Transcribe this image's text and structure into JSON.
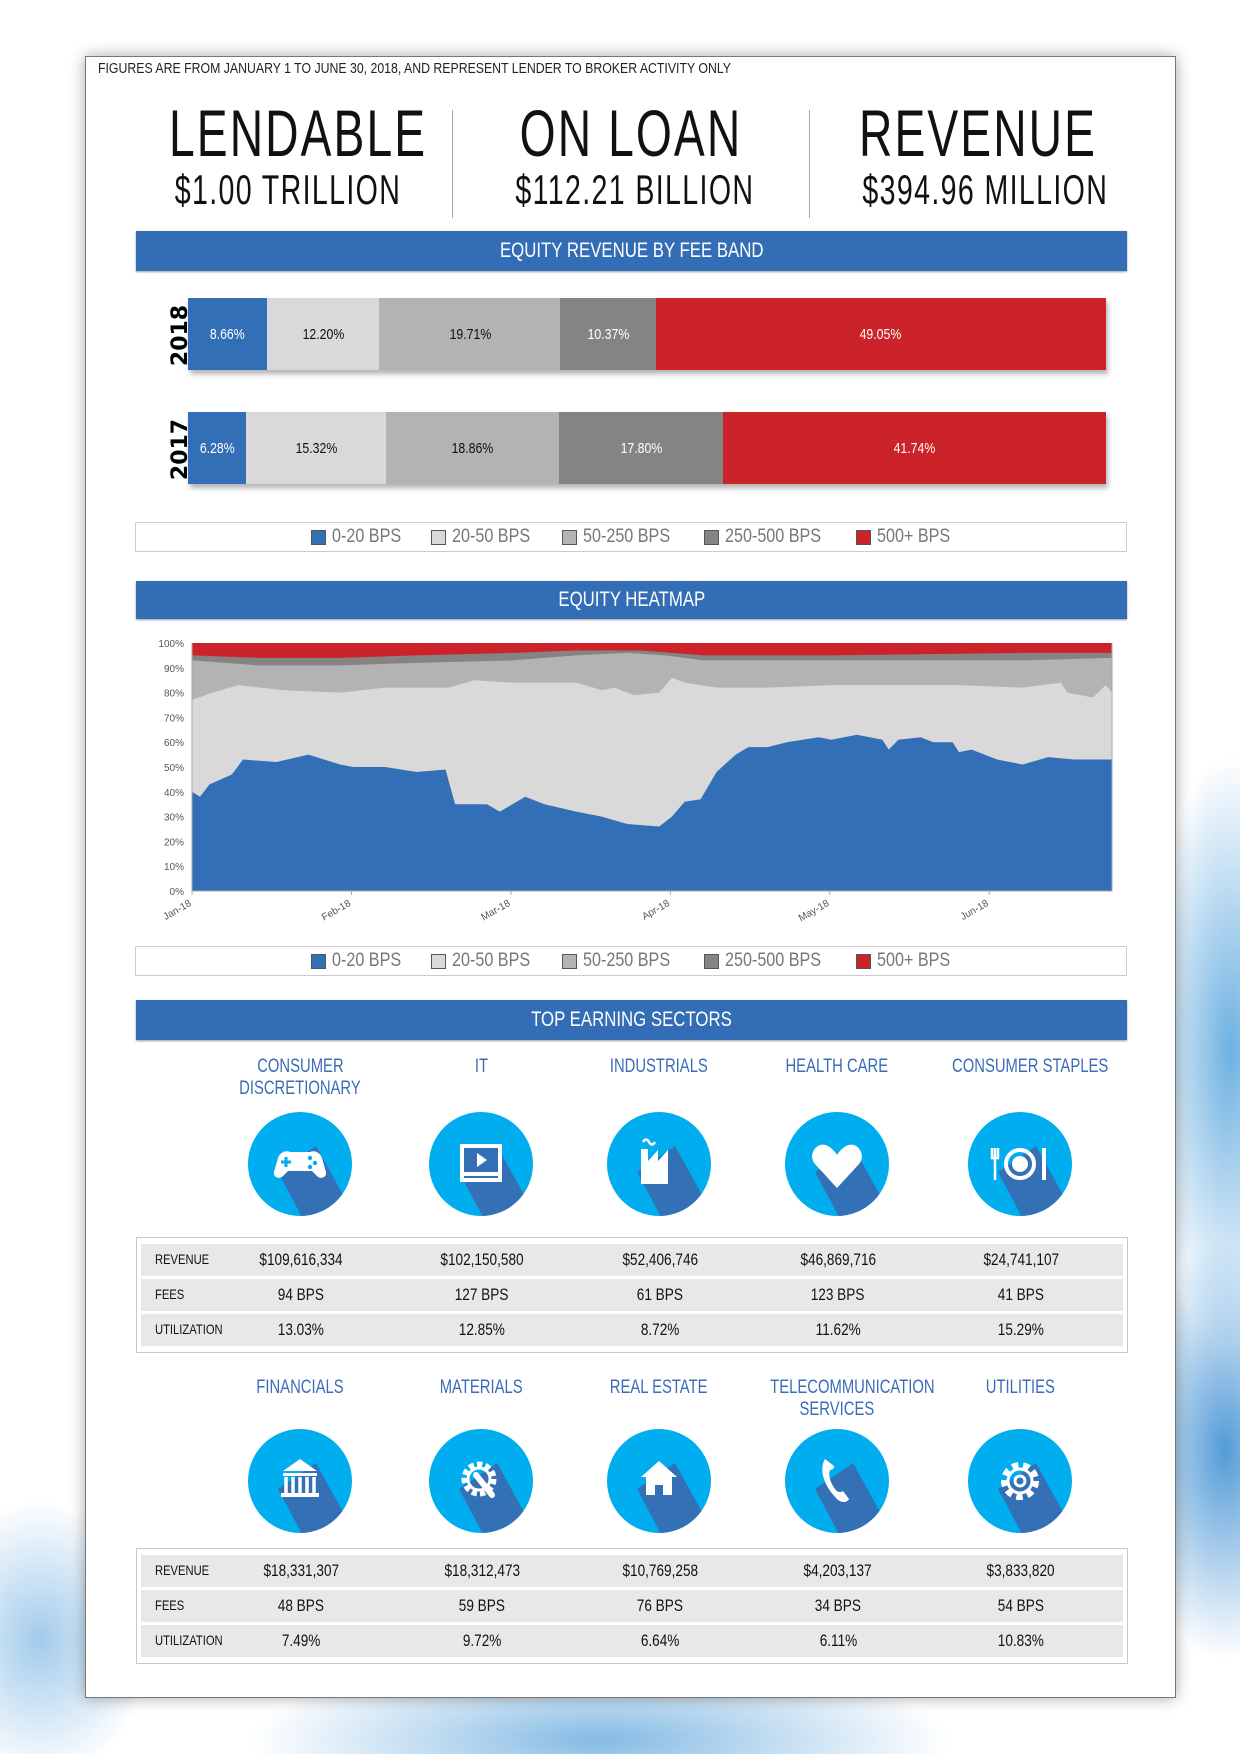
{
  "note": "FIGURES ARE FROM JANUARY 1 TO JUNE 30, 2018, AND REPRESENT LENDER TO BROKER ACTIVITY ONLY",
  "stats": [
    {
      "title": "LENDABLE",
      "value": "$1.00 TRILLION"
    },
    {
      "title": "ON LOAN",
      "value": "$112.21 BILLION"
    },
    {
      "title": "REVENUE",
      "value": "$394.96 MILLION"
    }
  ],
  "legend": [
    {
      "label": "0-20 BPS",
      "color": "#336fb7"
    },
    {
      "label": "20-50 BPS",
      "color": "#d9d9d9"
    },
    {
      "label": "50-250 BPS",
      "color": "#b4b3b3"
    },
    {
      "label": "250-500 BPS",
      "color": "#858483"
    },
    {
      "label": "500+ BPS",
      "color": "#cc232a"
    }
  ],
  "chart_data": [
    {
      "type": "bar",
      "title": "EQUITY REVENUE BY FEE BAND",
      "stacked": true,
      "orientation": "horizontal",
      "categories": [
        "2018",
        "2017"
      ],
      "series": [
        {
          "name": "0-20 BPS",
          "values": [
            8.66,
            6.28
          ],
          "labels": [
            "8.66%",
            "6.28%"
          ]
        },
        {
          "name": "20-50 BPS",
          "values": [
            12.2,
            15.32
          ],
          "labels": [
            "12.20%",
            "15.32%"
          ]
        },
        {
          "name": "50-250 BPS",
          "values": [
            19.71,
            18.86
          ],
          "labels": [
            "19.71%",
            "18.86%"
          ]
        },
        {
          "name": "250-500 BPS",
          "values": [
            10.37,
            17.8
          ],
          "labels": [
            "10.37%",
            "17.80%"
          ]
        },
        {
          "name": "500+ BPS",
          "values": [
            49.05,
            41.74
          ],
          "labels": [
            "49.05%",
            "41.74%"
          ]
        }
      ],
      "legend_position": "bottom"
    },
    {
      "type": "area",
      "title": "EQUITY HEATMAP",
      "stacked": true,
      "x_unit": "months since Jan-18",
      "xticks": [
        "Jan-18",
        "Feb-18",
        "Mar-18",
        "Apr-18",
        "May-18",
        "Jun-18"
      ],
      "yticks": [
        "0%",
        "10%",
        "20%",
        "30%",
        "40%",
        "50%",
        "60%",
        "70%",
        "80%",
        "90%",
        "100%"
      ],
      "ylim": [
        0,
        100
      ],
      "xlim": [
        0,
        5.77
      ],
      "legend_position": "bottom",
      "series": [
        {
          "name": "500+ BPS",
          "cumulative_upper": [
            [
              0,
              100
            ],
            [
              5.77,
              100
            ]
          ]
        },
        {
          "name": "250-500 BPS",
          "cumulative_upper": [
            [
              0,
              95
            ],
            [
              0.41,
              94
            ],
            [
              0.93,
              94
            ],
            [
              1.41,
              95
            ],
            [
              2.01,
              96
            ],
            [
              2.41,
              97
            ],
            [
              2.81,
              97
            ],
            [
              3.01,
              96
            ],
            [
              3.21,
              95
            ],
            [
              3.45,
              95
            ],
            [
              4.01,
              95
            ],
            [
              5.21,
              96
            ],
            [
              5.77,
              96
            ]
          ]
        },
        {
          "name": "50-250 BPS",
          "cumulative_upper": [
            [
              0,
              93
            ],
            [
              0.41,
              91
            ],
            [
              0.93,
              91
            ],
            [
              1.41,
              92
            ],
            [
              2.01,
              93
            ],
            [
              2.41,
              95
            ],
            [
              2.73,
              96
            ],
            [
              2.97,
              95
            ],
            [
              3.21,
              93
            ],
            [
              3.61,
              93
            ],
            [
              4.41,
              93
            ],
            [
              5.21,
              93
            ],
            [
              5.77,
              94
            ]
          ]
        },
        {
          "name": "20-50 BPS",
          "cumulative_upper": [
            [
              0,
              77
            ],
            [
              0.13,
              80
            ],
            [
              0.29,
              83
            ],
            [
              0.57,
              81
            ],
            [
              0.93,
              80
            ],
            [
              1.21,
              82
            ],
            [
              1.61,
              82
            ],
            [
              1.77,
              85
            ],
            [
              2.01,
              84
            ],
            [
              2.41,
              84
            ],
            [
              2.57,
              81
            ],
            [
              2.65,
              82
            ],
            [
              2.77,
              79
            ],
            [
              2.93,
              80
            ],
            [
              3.01,
              86
            ],
            [
              3.09,
              84
            ],
            [
              3.29,
              82
            ],
            [
              3.61,
              82
            ],
            [
              4.01,
              83
            ],
            [
              4.41,
              83
            ],
            [
              4.81,
              83
            ],
            [
              5.21,
              82
            ],
            [
              5.45,
              84
            ],
            [
              5.49,
              80
            ],
            [
              5.65,
              78
            ],
            [
              5.73,
              83
            ],
            [
              5.77,
              80
            ]
          ]
        },
        {
          "name": "0-20 BPS",
          "cumulative_upper": [
            [
              0,
              40
            ],
            [
              0.05,
              38
            ],
            [
              0.11,
              43
            ],
            [
              0.25,
              47
            ],
            [
              0.32,
              53
            ],
            [
              0.53,
              52
            ],
            [
              0.73,
              55
            ],
            [
              0.93,
              51
            ],
            [
              1.01,
              50
            ],
            [
              1.21,
              50
            ],
            [
              1.41,
              48
            ],
            [
              1.59,
              49
            ],
            [
              1.65,
              35
            ],
            [
              1.85,
              35
            ],
            [
              1.93,
              32
            ],
            [
              2.09,
              38
            ],
            [
              2.21,
              35
            ],
            [
              2.41,
              32
            ],
            [
              2.57,
              30
            ],
            [
              2.73,
              27
            ],
            [
              2.93,
              26
            ],
            [
              3.01,
              30
            ],
            [
              3.09,
              36
            ],
            [
              3.19,
              37
            ],
            [
              3.29,
              48
            ],
            [
              3.41,
              55
            ],
            [
              3.49,
              58
            ],
            [
              3.61,
              58
            ],
            [
              3.73,
              60
            ],
            [
              3.93,
              62
            ],
            [
              4.01,
              61
            ],
            [
              4.17,
              63
            ],
            [
              4.33,
              61
            ],
            [
              4.37,
              57
            ],
            [
              4.43,
              61
            ],
            [
              4.57,
              62
            ],
            [
              4.65,
              60
            ],
            [
              4.77,
              60
            ],
            [
              4.81,
              56
            ],
            [
              4.89,
              57
            ],
            [
              5.05,
              53
            ],
            [
              5.21,
              51
            ],
            [
              5.37,
              54
            ],
            [
              5.53,
              53
            ],
            [
              5.77,
              53
            ]
          ]
        }
      ]
    },
    {
      "type": "table",
      "title": "TOP EARNING SECTORS",
      "row_labels": [
        "REVENUE",
        "FEES",
        "UTILIZATION"
      ],
      "groups": [
        {
          "sectors": [
            {
              "name": [
                "CONSUMER",
                "DISCRETIONARY"
              ],
              "icon": "gamepad-icon",
              "revenue": "$109,616,334",
              "fees": "94 BPS",
              "utilization": "13.03%"
            },
            {
              "name": [
                "IT"
              ],
              "icon": "video-screen-icon",
              "revenue": "$102,150,580",
              "fees": "127 BPS",
              "utilization": "12.85%"
            },
            {
              "name": [
                "INDUSTRIALS"
              ],
              "icon": "factory-icon",
              "revenue": "$52,406,746",
              "fees": "61 BPS",
              "utilization": "8.72%"
            },
            {
              "name": [
                "HEALTH CARE"
              ],
              "icon": "heart-icon",
              "revenue": "$46,869,716",
              "fees": "123 BPS",
              "utilization": "11.62%"
            },
            {
              "name": [
                "CONSUMER STAPLES"
              ],
              "icon": "plate-cutlery-icon",
              "revenue": "$24,741,107",
              "fees": "41 BPS",
              "utilization": "15.29%"
            }
          ]
        },
        {
          "sectors": [
            {
              "name": [
                "FINANCIALS"
              ],
              "icon": "bank-icon",
              "revenue": "$18,331,307",
              "fees": "48 BPS",
              "utilization": "7.49%"
            },
            {
              "name": [
                "MATERIALS"
              ],
              "icon": "gear-wrench-icon",
              "revenue": "$18,312,473",
              "fees": "59 BPS",
              "utilization": "9.72%"
            },
            {
              "name": [
                "REAL ESTATE"
              ],
              "icon": "house-icon",
              "revenue": "$10,769,258",
              "fees": "76 BPS",
              "utilization": "6.64%"
            },
            {
              "name": [
                "TELECOMMUNICATION",
                "SERVICES"
              ],
              "icon": "phone-icon",
              "revenue": "$4,203,137",
              "fees": "34 BPS",
              "utilization": "6.11%"
            },
            {
              "name": [
                "UTILITIES"
              ],
              "icon": "gear-icon",
              "revenue": "$3,833,820",
              "fees": "54 BPS",
              "utilization": "10.83%"
            }
          ]
        }
      ]
    }
  ],
  "colors": {
    "header_band": "#336db5",
    "icon_circle": "#00aeef",
    "icon_shadow": "#3470b6",
    "sector_name": "#3a6cb8"
  }
}
